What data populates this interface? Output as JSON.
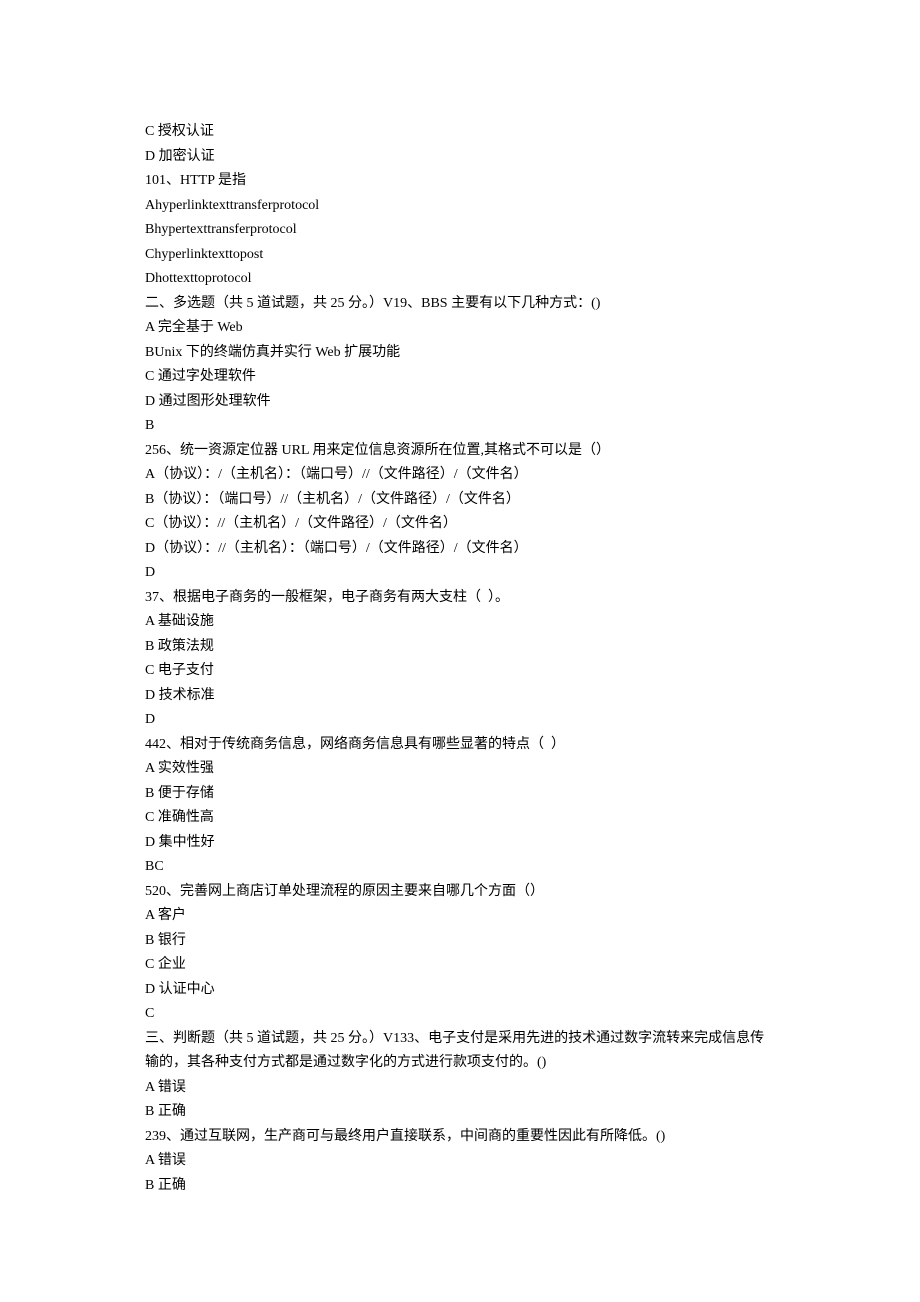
{
  "lines": [
    "C 授权认证",
    "D 加密认证",
    "101、HTTP 是指",
    "Ahyperlinktexttransferprotocol",
    "Bhypertexttransferprotocol",
    "Chyperlinktexttopost",
    "Dhottexttoprotocol",
    "二、多选题（共 5 道试题，共 25 分。）V19、BBS 主要有以下几种方式：()",
    "A 完全基于 Web",
    "BUnix 下的终端仿真并实行 Web 扩展功能",
    "C 通过字处理软件",
    "D 通过图形处理软件",
    "B",
    "256、统一资源定位器 URL 用来定位信息资源所在位置,其格式不可以是（）",
    "A（协议）：/（主机名）：（端口号）//（文件路径）/（文件名）",
    "B（协议）：（端口号）//（主机名）/（文件路径）/（文件名）",
    "C（协议）：//（主机名）/（文件路径）/（文件名）",
    "D（协议）：//（主机名）：（端口号）/（文件路径）/（文件名）",
    "D",
    "37、根据电子商务的一般框架，电子商务有两大支柱（  ）。",
    "A 基础设施",
    "B 政策法规",
    "C 电子支付",
    "D 技术标准",
    "D",
    "442、相对于传统商务信息，网络商务信息具有哪些显著的特点（  ）",
    "A 实效性强",
    "B 便于存储",
    "C 准确性高",
    "D 集中性好",
    "BC",
    "520、完善网上商店订单处理流程的原因主要来自哪几个方面（）",
    "A 客户",
    "B 银行",
    "C 企业",
    "D 认证中心",
    "C",
    "三、判断题（共 5 道试题，共 25 分。）V133、电子支付是采用先进的技术通过数字流转来完成信息传输的，其各种支付方式都是通过数字化的方式进行款项支付的。()",
    "A 错误",
    "B 正确",
    "239、通过互联网，生产商可与最终用户直接联系，中间商的重要性因此有所降低。()",
    "A 错误",
    "B 正确"
  ]
}
